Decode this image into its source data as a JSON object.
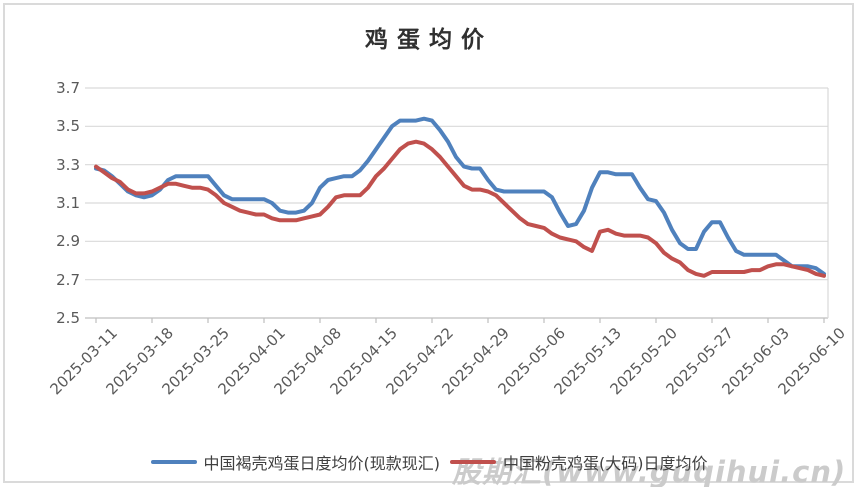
{
  "title": "鸡蛋均价",
  "watermark": "股期汇(www.guqihui.cn)",
  "colors": {
    "series_blue": "#4F81BD",
    "series_red": "#C0504D",
    "gridline": "#D9D9D9",
    "axis": "#BFBFBF",
    "tick_text": "#595959",
    "title_text": "#303030",
    "watermark_text": "#CBCBCB",
    "frame_border": "#DADADA"
  },
  "y_axis": {
    "tick_labels": [
      "3.7",
      "3.5",
      "3.3",
      "3.1",
      "2.9",
      "2.7",
      "2.5"
    ]
  },
  "x_axis": {
    "tick_labels": [
      "2025-03-11",
      "2025-03-18",
      "2025-03-25",
      "2025-04-01",
      "2025-04-08",
      "2025-04-15",
      "2025-04-22",
      "2025-04-29",
      "2025-05-06",
      "2025-05-13",
      "2025-05-20",
      "2025-05-27",
      "2025-06-03",
      "2025-06-10"
    ]
  },
  "legend": {
    "items": [
      {
        "label": "中国褐壳鸡蛋日度均价(现款现汇)",
        "color": "#4F81BD"
      },
      {
        "label": "中国粉壳鸡蛋(大码)日度均价",
        "color": "#C0504D"
      }
    ]
  },
  "chart_data": {
    "type": "line",
    "title": "鸡蛋均价",
    "xlabel": "",
    "ylabel": "",
    "ylim": [
      2.5,
      3.7
    ],
    "ytick_step": 0.2,
    "grid": true,
    "legend_position": "bottom",
    "x_tick_labels": [
      "2025-03-11",
      "2025-03-18",
      "2025-03-25",
      "2025-04-01",
      "2025-04-08",
      "2025-04-15",
      "2025-04-22",
      "2025-04-29",
      "2025-05-06",
      "2025-05-13",
      "2025-05-20",
      "2025-05-27",
      "2025-06-03",
      "2025-06-10"
    ],
    "x": [
      "2025-03-11",
      "2025-03-12",
      "2025-03-13",
      "2025-03-14",
      "2025-03-15",
      "2025-03-16",
      "2025-03-17",
      "2025-03-18",
      "2025-03-19",
      "2025-03-20",
      "2025-03-21",
      "2025-03-22",
      "2025-03-23",
      "2025-03-24",
      "2025-03-25",
      "2025-03-26",
      "2025-03-27",
      "2025-03-28",
      "2025-03-29",
      "2025-03-30",
      "2025-03-31",
      "2025-04-01",
      "2025-04-02",
      "2025-04-03",
      "2025-04-04",
      "2025-04-05",
      "2025-04-06",
      "2025-04-07",
      "2025-04-08",
      "2025-04-09",
      "2025-04-10",
      "2025-04-11",
      "2025-04-12",
      "2025-04-13",
      "2025-04-14",
      "2025-04-15",
      "2025-04-16",
      "2025-04-17",
      "2025-04-18",
      "2025-04-19",
      "2025-04-20",
      "2025-04-21",
      "2025-04-22",
      "2025-04-23",
      "2025-04-24",
      "2025-04-25",
      "2025-04-26",
      "2025-04-27",
      "2025-04-28",
      "2025-04-29",
      "2025-04-30",
      "2025-05-01",
      "2025-05-02",
      "2025-05-03",
      "2025-05-04",
      "2025-05-05",
      "2025-05-06",
      "2025-05-07",
      "2025-05-08",
      "2025-05-09",
      "2025-05-10",
      "2025-05-11",
      "2025-05-12",
      "2025-05-13",
      "2025-05-14",
      "2025-05-15",
      "2025-05-16",
      "2025-05-17",
      "2025-05-18",
      "2025-05-19",
      "2025-05-20",
      "2025-05-21",
      "2025-05-22",
      "2025-05-23",
      "2025-05-24",
      "2025-05-25",
      "2025-05-26",
      "2025-05-27",
      "2025-05-28",
      "2025-05-29",
      "2025-05-30",
      "2025-05-31",
      "2025-06-01",
      "2025-06-02",
      "2025-06-03",
      "2025-06-04",
      "2025-06-05",
      "2025-06-06",
      "2025-06-07",
      "2025-06-08",
      "2025-06-09",
      "2025-06-10"
    ],
    "series": [
      {
        "name": "中国褐壳鸡蛋日度均价(现款现汇)",
        "color": "#4F81BD",
        "values": [
          3.28,
          3.27,
          3.24,
          3.2,
          3.16,
          3.14,
          3.13,
          3.14,
          3.17,
          3.22,
          3.24,
          3.24,
          3.24,
          3.24,
          3.24,
          3.19,
          3.14,
          3.12,
          3.12,
          3.12,
          3.12,
          3.12,
          3.1,
          3.06,
          3.05,
          3.05,
          3.06,
          3.1,
          3.18,
          3.22,
          3.23,
          3.24,
          3.24,
          3.27,
          3.32,
          3.38,
          3.44,
          3.5,
          3.53,
          3.53,
          3.53,
          3.54,
          3.53,
          3.48,
          3.42,
          3.34,
          3.29,
          3.28,
          3.28,
          3.22,
          3.17,
          3.16,
          3.16,
          3.16,
          3.16,
          3.16,
          3.16,
          3.13,
          3.05,
          2.98,
          2.99,
          3.06,
          3.18,
          3.26,
          3.26,
          3.25,
          3.25,
          3.25,
          3.18,
          3.12,
          3.11,
          3.05,
          2.96,
          2.89,
          2.86,
          2.86,
          2.95,
          3.0,
          3.0,
          2.92,
          2.85,
          2.83,
          2.83,
          2.83,
          2.83,
          2.83,
          2.8,
          2.77,
          2.77,
          2.77,
          2.76,
          2.73
        ]
      },
      {
        "name": "中国粉壳鸡蛋(大码)日度均价",
        "color": "#C0504D",
        "values": [
          3.29,
          3.26,
          3.23,
          3.21,
          3.17,
          3.15,
          3.15,
          3.16,
          3.18,
          3.2,
          3.2,
          3.19,
          3.18,
          3.18,
          3.17,
          3.14,
          3.1,
          3.08,
          3.06,
          3.05,
          3.04,
          3.04,
          3.02,
          3.01,
          3.01,
          3.01,
          3.02,
          3.03,
          3.04,
          3.08,
          3.13,
          3.14,
          3.14,
          3.14,
          3.18,
          3.24,
          3.28,
          3.33,
          3.38,
          3.41,
          3.42,
          3.41,
          3.38,
          3.34,
          3.29,
          3.24,
          3.19,
          3.17,
          3.17,
          3.16,
          3.14,
          3.1,
          3.06,
          3.02,
          2.99,
          2.98,
          2.97,
          2.94,
          2.92,
          2.91,
          2.9,
          2.87,
          2.85,
          2.95,
          2.96,
          2.94,
          2.93,
          2.93,
          2.93,
          2.92,
          2.89,
          2.84,
          2.81,
          2.79,
          2.75,
          2.73,
          2.72,
          2.74,
          2.74,
          2.74,
          2.74,
          2.74,
          2.75,
          2.75,
          2.77,
          2.78,
          2.78,
          2.77,
          2.76,
          2.75,
          2.73,
          2.72
        ]
      }
    ]
  }
}
